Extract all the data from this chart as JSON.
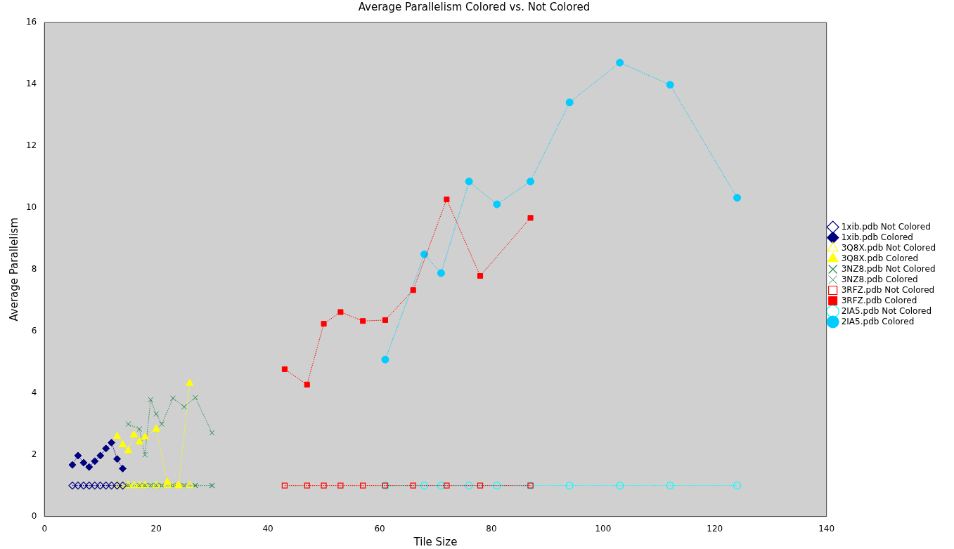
{
  "chart_data": {
    "type": "line",
    "title": "Average Parallelism Colored vs. Not Colored",
    "xlabel": "Tile Size",
    "ylabel": "Average Parallelism",
    "xlim": [
      0,
      140
    ],
    "xticks": [
      0,
      20,
      40,
      60,
      80,
      100,
      120,
      140
    ],
    "ylim": [
      0,
      16
    ],
    "yticks": [
      0,
      2,
      4,
      6,
      8,
      10,
      12,
      14,
      16
    ],
    "grid": false,
    "legend": "right",
    "line_style": "dotted",
    "series": [
      {
        "name": "1xib.pdb Not Colored",
        "color": "#000080",
        "marker": "diamond",
        "x": [
          5,
          6,
          7,
          8,
          9,
          10,
          11,
          12,
          13,
          14
        ],
        "values": [
          1,
          1,
          1,
          1,
          1,
          1,
          1,
          1,
          1,
          1
        ]
      },
      {
        "name": "1xib.pdb Colored",
        "color": "#000080",
        "marker": "diamond",
        "x": [
          5,
          6,
          7,
          8,
          9,
          10,
          11,
          12,
          13,
          14
        ],
        "values": [
          1.67,
          1.97,
          1.74,
          1.6,
          1.79,
          1.97,
          2.2,
          2.39,
          1.86,
          1.55
        ]
      },
      {
        "name": "3Q8X.pdb Not Colored",
        "color": "#ffff00",
        "marker": "triangle",
        "x": [
          13,
          14,
          15,
          16,
          17,
          18,
          20,
          22,
          24,
          26
        ],
        "values": [
          1,
          1,
          1,
          1,
          1,
          1,
          1,
          1,
          1,
          1
        ]
      },
      {
        "name": "3Q8X.pdb Colored",
        "color": "#ffff00",
        "marker": "triangle",
        "x": [
          13,
          14,
          15,
          16,
          17,
          18,
          20,
          22,
          24,
          26
        ],
        "values": [
          2.59,
          2.32,
          2.13,
          2.64,
          2.41,
          2.57,
          2.83,
          1.11,
          1.0,
          4.31
        ]
      },
      {
        "name": "3NZ8.pdb Not Colored",
        "color": "#2e8b57",
        "marker": "cross",
        "x": [
          15,
          17,
          18,
          19,
          20,
          21,
          23,
          25,
          27,
          30
        ],
        "values": [
          1,
          1,
          1,
          1,
          1,
          1,
          1,
          1,
          1,
          1
        ]
      },
      {
        "name": "3NZ8.pdb Colored",
        "color": "#2e8b57",
        "marker": "cross",
        "x": [
          15,
          17,
          18,
          19,
          20,
          21,
          23,
          25,
          27,
          30
        ],
        "values": [
          2.99,
          2.83,
          2.0,
          3.78,
          3.32,
          2.99,
          3.83,
          3.55,
          3.85,
          2.71
        ]
      },
      {
        "name": "3RFZ.pdb Not Colored",
        "color": "#ff0000",
        "marker": "square",
        "x": [
          43,
          47,
          50,
          53,
          57,
          61,
          66,
          72,
          78,
          87
        ],
        "values": [
          1,
          1,
          1,
          1,
          1,
          1,
          1,
          1,
          1,
          1
        ]
      },
      {
        "name": "3RFZ.pdb Colored",
        "color": "#ff0000",
        "marker": "square",
        "x": [
          43,
          47,
          50,
          53,
          57,
          61,
          66,
          72,
          78,
          87
        ],
        "values": [
          4.77,
          4.27,
          6.24,
          6.62,
          6.33,
          6.36,
          7.33,
          10.27,
          7.79,
          9.67
        ]
      },
      {
        "name": "2IA5.pdb Not Colored",
        "color": "#00ffff",
        "marker": "circle",
        "x": [
          61,
          68,
          71,
          76,
          81,
          87,
          94,
          103,
          112,
          124
        ],
        "values": [
          1,
          1,
          1,
          1,
          1,
          1,
          1,
          1,
          1,
          1
        ]
      },
      {
        "name": "2IA5.pdb Colored",
        "color": "#00ccff",
        "marker": "circle",
        "x": [
          61,
          68,
          71,
          76,
          81,
          87,
          94,
          103,
          112,
          124
        ],
        "values": [
          5.08,
          8.49,
          7.88,
          10.85,
          10.11,
          10.85,
          13.41,
          14.7,
          13.98,
          10.32
        ]
      }
    ]
  }
}
